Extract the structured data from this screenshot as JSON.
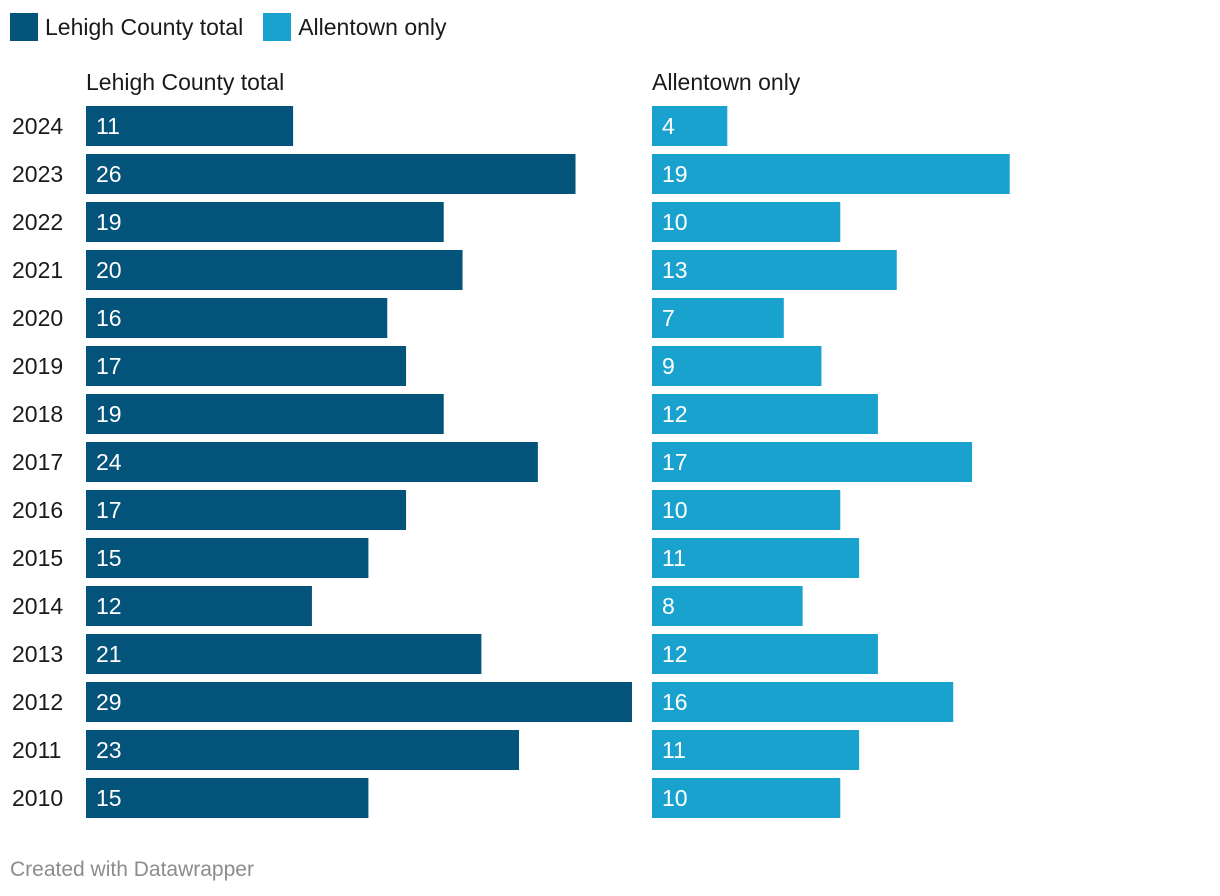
{
  "legend": [
    {
      "label": "Lehigh County total",
      "color": "#03537a"
    },
    {
      "label": "Allentown only",
      "color": "#1aa2cf"
    }
  ],
  "chart_data": {
    "type": "bar",
    "orientation": "horizontal",
    "categories": [
      "2024",
      "2023",
      "2022",
      "2021",
      "2020",
      "2019",
      "2018",
      "2017",
      "2016",
      "2015",
      "2014",
      "2013",
      "2012",
      "2011",
      "2010"
    ],
    "series": [
      {
        "name": "Lehigh County total",
        "color": "#03537a",
        "values": [
          11,
          26,
          19,
          20,
          16,
          17,
          19,
          24,
          17,
          15,
          12,
          21,
          29,
          23,
          15
        ]
      },
      {
        "name": "Allentown only",
        "color": "#1aa2cf",
        "values": [
          4,
          19,
          10,
          13,
          7,
          9,
          12,
          17,
          10,
          11,
          8,
          12,
          16,
          11,
          10
        ]
      }
    ],
    "xlim": [
      0,
      29
    ]
  },
  "footer": "Created with Datawrapper"
}
